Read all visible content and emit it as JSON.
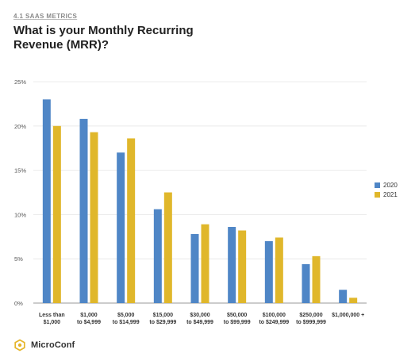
{
  "header": {
    "kicker": "4.1 SAAS METRICS",
    "title": "What is your Monthly Recurring Revenue (MRR)?"
  },
  "brand": {
    "name": "MicroConf",
    "logo_icon": "microconf-logo-icon",
    "accent": "#e5b52a"
  },
  "chart_data": {
    "type": "bar",
    "categories": [
      [
        "Less than",
        "$1,000"
      ],
      [
        "$1,000",
        "to $4,999"
      ],
      [
        "$5,000",
        "to $14,999"
      ],
      [
        "$15,000",
        "to $29,999"
      ],
      [
        "$30,000",
        "to $49,999"
      ],
      [
        "$50,000",
        "to $99,999"
      ],
      [
        "$100,000",
        "to $249,999"
      ],
      [
        "$250,000",
        "to $999,999"
      ],
      [
        "$1,000,000 +"
      ]
    ],
    "series": [
      {
        "name": "2020",
        "color": "#4f86c6",
        "values": [
          23.0,
          20.8,
          17.0,
          10.6,
          7.8,
          8.6,
          7.0,
          4.4,
          1.5
        ]
      },
      {
        "name": "2021",
        "color": "#e0b72b",
        "values": [
          20.0,
          19.3,
          18.6,
          12.5,
          8.9,
          8.2,
          7.4,
          5.3,
          0.6
        ]
      }
    ],
    "ylim": [
      0,
      25
    ],
    "yticks": [
      "0%",
      "5%",
      "10%",
      "15%",
      "20%",
      "25%"
    ],
    "ytick_values": [
      0,
      5,
      10,
      15,
      20,
      25
    ],
    "grid": true,
    "legend_position": "right",
    "xlabel": "",
    "ylabel": ""
  }
}
